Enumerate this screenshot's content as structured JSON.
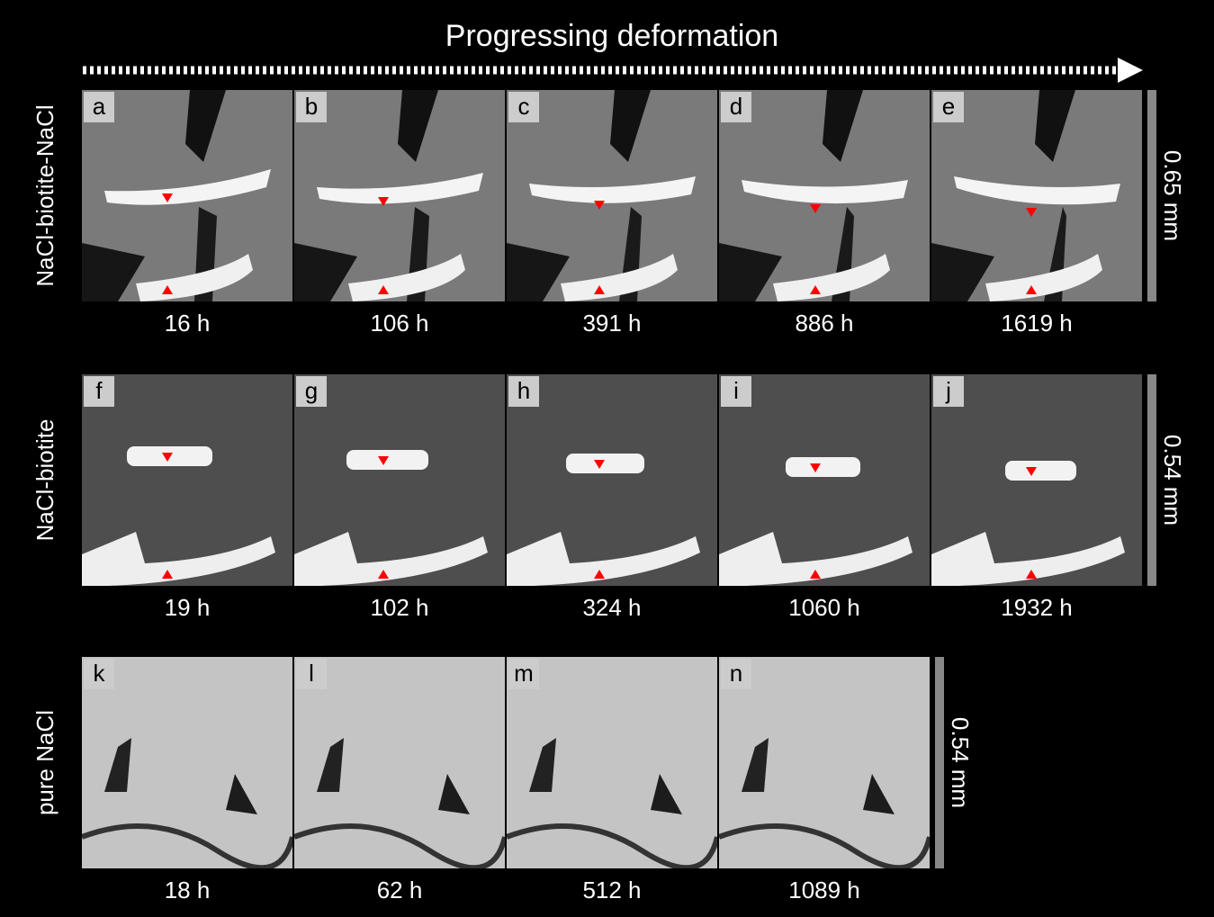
{
  "title": "Progressing deformation",
  "rows": [
    {
      "label": "NaCl-biotite-NaCl",
      "scale": "0.65 mm",
      "panels": [
        {
          "letter": "a",
          "time": "16 h"
        },
        {
          "letter": "b",
          "time": "106 h"
        },
        {
          "letter": "c",
          "time": "391 h"
        },
        {
          "letter": "d",
          "time": "886 h"
        },
        {
          "letter": "e",
          "time": "1619 h"
        }
      ]
    },
    {
      "label": "NaCl-biotite",
      "scale": "0.54 mm",
      "panels": [
        {
          "letter": "f",
          "time": "19 h"
        },
        {
          "letter": "g",
          "time": "102 h"
        },
        {
          "letter": "h",
          "time": "324 h"
        },
        {
          "letter": "i",
          "time": "1060 h"
        },
        {
          "letter": "j",
          "time": "1932 h"
        }
      ]
    },
    {
      "label": "pure NaCl",
      "scale": "0.54 mm",
      "panels": [
        {
          "letter": "k",
          "time": "18 h"
        },
        {
          "letter": "l",
          "time": "62 h"
        },
        {
          "letter": "m",
          "time": "512 h"
        },
        {
          "letter": "n",
          "time": "1089 h"
        }
      ]
    }
  ]
}
